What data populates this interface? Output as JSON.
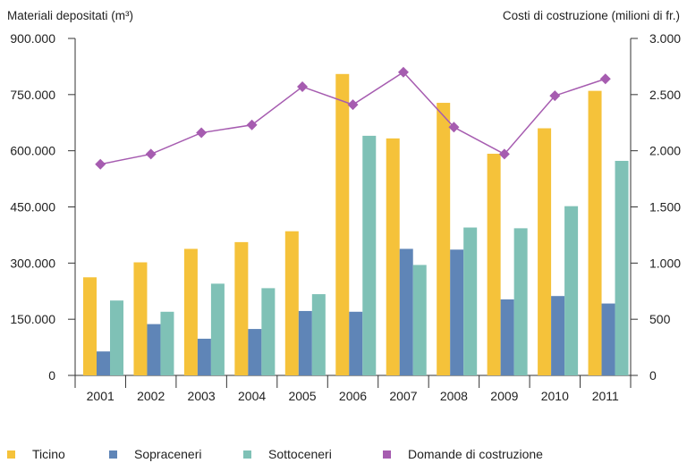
{
  "chart_data": {
    "type": "bar",
    "categories": [
      "2001",
      "2002",
      "2003",
      "2004",
      "2005",
      "2006",
      "2007",
      "2008",
      "2009",
      "2010",
      "2011"
    ],
    "left_axis": {
      "label": "Materiali depositati (m³)",
      "ylim": [
        0,
        900000
      ],
      "ticks": [
        "0",
        "150.000",
        "300.000",
        "450.000",
        "600.000",
        "750.000",
        "900.000"
      ],
      "tick_values": [
        0,
        150000,
        300000,
        450000,
        600000,
        750000,
        900000
      ]
    },
    "right_axis": {
      "label": "Costi di costruzione (milioni di fr.)",
      "ylim": [
        0,
        3000
      ],
      "ticks": [
        "0",
        "500",
        "1.000",
        "1.500",
        "2.000",
        "2.500",
        "3.000"
      ],
      "tick_values": [
        0,
        500,
        1000,
        1500,
        2000,
        2500,
        3000
      ]
    },
    "series": [
      {
        "name": "Ticino",
        "kind": "bar",
        "axis": "left",
        "color": "#F5C23A",
        "values": [
          262000,
          302000,
          338000,
          356000,
          385000,
          805000,
          633000,
          728000,
          592000,
          660000,
          760000
        ]
      },
      {
        "name": "Sopraceneri",
        "kind": "bar",
        "axis": "left",
        "color": "#5F85B7",
        "values": [
          64000,
          137000,
          98000,
          124000,
          172000,
          170000,
          338000,
          336000,
          203000,
          212000,
          192000
        ]
      },
      {
        "name": "Sottoceneri",
        "kind": "bar",
        "axis": "left",
        "color": "#7FC1B6",
        "values": [
          200000,
          170000,
          245000,
          233000,
          217000,
          640000,
          295000,
          395000,
          393000,
          452000,
          573000
        ]
      },
      {
        "name": "Domande di costruzione",
        "kind": "line",
        "axis": "right",
        "color": "#A65CB0",
        "values": [
          1880,
          1970,
          2160,
          2230,
          2570,
          2410,
          2700,
          2210,
          1970,
          2490,
          2640
        ]
      }
    ],
    "grid": false,
    "legend_position": "bottom"
  }
}
